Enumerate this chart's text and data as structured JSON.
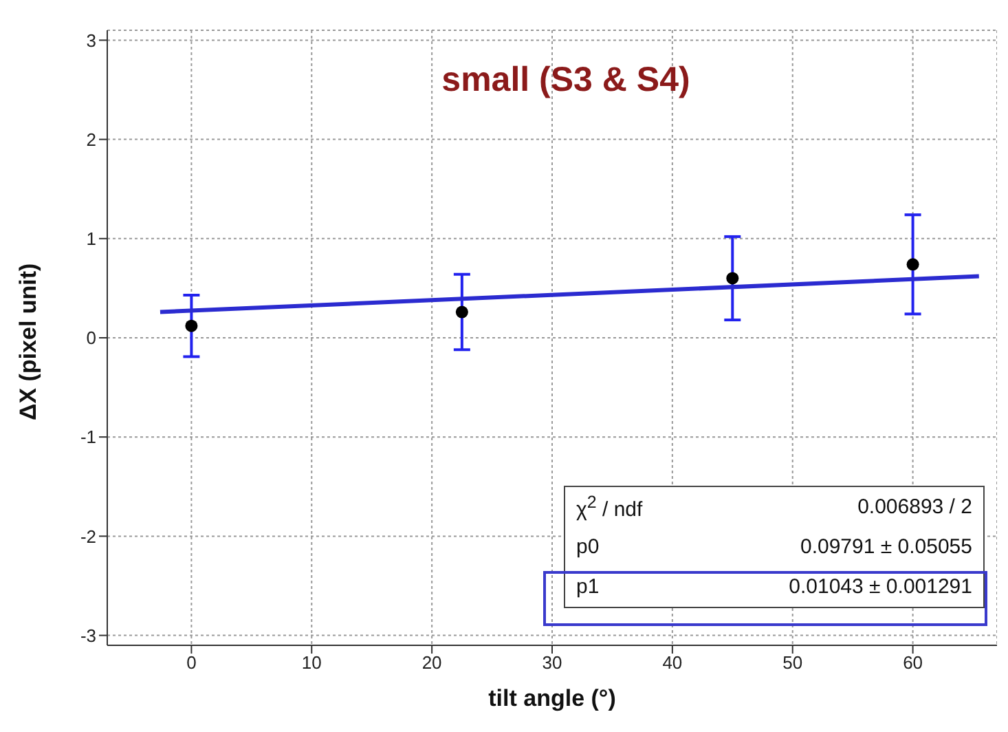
{
  "chart_data": {
    "type": "scatter",
    "title": "small (S3 & S4)",
    "xlabel": "tilt angle (°)",
    "ylabel": "ΔX (pixel unit)",
    "x": [
      0,
      22.5,
      45,
      60
    ],
    "series": [
      {
        "color": "#000000",
        "marker": "circle",
        "values": [
          0.12,
          0.26,
          0.6,
          0.74
        ],
        "errors": [
          0.31,
          0.38,
          0.42,
          0.5
        ]
      },
      {
        "type": "line",
        "color": "#2b2bd0",
        "x": [
          -2.6,
          65.5
        ],
        "values": [
          0.26,
          0.62
        ]
      }
    ],
    "xlim": [
      -7,
      67
    ],
    "ylim": [
      -3.1,
      3.1
    ],
    "xticks": [
      0,
      10,
      20,
      30,
      40,
      50,
      60
    ],
    "yticks": [
      -3,
      -2,
      -1,
      0,
      1,
      2,
      3
    ],
    "grid": true,
    "annotations": [
      "χ$^{2}$ / ndf",
      "0.006893 / 2",
      "p0",
      "0.09791 ± 0.05055",
      "p1",
      "0.01043 ± 0.001291"
    ]
  }
}
